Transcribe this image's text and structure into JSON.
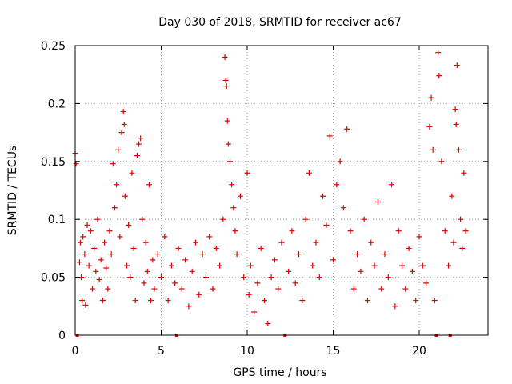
{
  "chart_data": {
    "type": "scatter",
    "title": "Day 030 of 2018, SRMTID for receiver ac67",
    "xlabel": "GPS time / hours",
    "ylabel": "SRMTID / TECUs",
    "xlim": [
      0,
      24
    ],
    "ylim": [
      0,
      0.25
    ],
    "grid": true,
    "marker": "+",
    "marker_color": "#dd0000",
    "x_ticks": [
      0,
      5,
      10,
      15,
      20
    ],
    "x_tick_labels": [
      "0",
      "5",
      "10",
      "15",
      "20"
    ],
    "y_ticks": [
      0,
      0.05,
      0.1,
      0.15,
      0.2,
      0.25
    ],
    "y_tick_labels": [
      "0",
      "0.05",
      "0.1",
      "0.15",
      "0.2",
      "0.25"
    ],
    "series": [
      {
        "name": "SRMTID",
        "points": [
          [
            0.0,
            0.157
          ],
          [
            0.05,
            0.148
          ],
          [
            0.12,
            0.0
          ],
          [
            0.25,
            0.063
          ],
          [
            0.3,
            0.08
          ],
          [
            0.35,
            0.05
          ],
          [
            0.4,
            0.03
          ],
          [
            0.45,
            0.085
          ],
          [
            0.55,
            0.07
          ],
          [
            0.6,
            0.026
          ],
          [
            0.7,
            0.095
          ],
          [
            0.8,
            0.06
          ],
          [
            0.9,
            0.09
          ],
          [
            1.0,
            0.04
          ],
          [
            1.1,
            0.075
          ],
          [
            1.2,
            0.055
          ],
          [
            1.3,
            0.1
          ],
          [
            1.4,
            0.048
          ],
          [
            1.5,
            0.065
          ],
          [
            1.6,
            0.03
          ],
          [
            1.7,
            0.08
          ],
          [
            1.8,
            0.058
          ],
          [
            1.9,
            0.04
          ],
          [
            2.0,
            0.09
          ],
          [
            2.1,
            0.07
          ],
          [
            2.2,
            0.148
          ],
          [
            2.3,
            0.11
          ],
          [
            2.4,
            0.13
          ],
          [
            2.5,
            0.16
          ],
          [
            2.6,
            0.085
          ],
          [
            2.7,
            0.175
          ],
          [
            2.8,
            0.193
          ],
          [
            2.85,
            0.182
          ],
          [
            2.9,
            0.12
          ],
          [
            3.0,
            0.06
          ],
          [
            3.1,
            0.095
          ],
          [
            3.2,
            0.05
          ],
          [
            3.3,
            0.14
          ],
          [
            3.4,
            0.075
          ],
          [
            3.5,
            0.03
          ],
          [
            3.6,
            0.155
          ],
          [
            3.7,
            0.165
          ],
          [
            3.8,
            0.17
          ],
          [
            3.9,
            0.1
          ],
          [
            4.0,
            0.045
          ],
          [
            4.1,
            0.08
          ],
          [
            4.2,
            0.055
          ],
          [
            4.3,
            0.13
          ],
          [
            4.4,
            0.03
          ],
          [
            4.5,
            0.065
          ],
          [
            4.6,
            0.04
          ],
          [
            4.8,
            0.07
          ],
          [
            5.0,
            0.05
          ],
          [
            5.2,
            0.085
          ],
          [
            5.4,
            0.03
          ],
          [
            5.6,
            0.06
          ],
          [
            5.8,
            0.045
          ],
          [
            5.9,
            0.0
          ],
          [
            6.0,
            0.075
          ],
          [
            6.2,
            0.04
          ],
          [
            6.4,
            0.065
          ],
          [
            6.6,
            0.025
          ],
          [
            6.8,
            0.055
          ],
          [
            7.0,
            0.08
          ],
          [
            7.2,
            0.035
          ],
          [
            7.4,
            0.07
          ],
          [
            7.6,
            0.05
          ],
          [
            7.8,
            0.085
          ],
          [
            8.0,
            0.04
          ],
          [
            8.2,
            0.075
          ],
          [
            8.4,
            0.06
          ],
          [
            8.6,
            0.1
          ],
          [
            8.7,
            0.24
          ],
          [
            8.75,
            0.22
          ],
          [
            8.8,
            0.215
          ],
          [
            8.85,
            0.185
          ],
          [
            8.9,
            0.165
          ],
          [
            9.0,
            0.15
          ],
          [
            9.1,
            0.13
          ],
          [
            9.2,
            0.11
          ],
          [
            9.3,
            0.09
          ],
          [
            9.4,
            0.07
          ],
          [
            9.6,
            0.12
          ],
          [
            9.8,
            0.05
          ],
          [
            10.0,
            0.14
          ],
          [
            10.1,
            0.035
          ],
          [
            10.2,
            0.06
          ],
          [
            10.4,
            0.02
          ],
          [
            10.6,
            0.045
          ],
          [
            10.8,
            0.075
          ],
          [
            11.0,
            0.03
          ],
          [
            11.2,
            0.01
          ],
          [
            11.4,
            0.05
          ],
          [
            11.6,
            0.065
          ],
          [
            11.8,
            0.04
          ],
          [
            12.0,
            0.08
          ],
          [
            12.2,
            0.0
          ],
          [
            12.4,
            0.055
          ],
          [
            12.6,
            0.09
          ],
          [
            12.8,
            0.045
          ],
          [
            13.0,
            0.07
          ],
          [
            13.2,
            0.03
          ],
          [
            13.4,
            0.1
          ],
          [
            13.6,
            0.14
          ],
          [
            13.8,
            0.06
          ],
          [
            14.0,
            0.08
          ],
          [
            14.2,
            0.05
          ],
          [
            14.4,
            0.12
          ],
          [
            14.6,
            0.095
          ],
          [
            14.8,
            0.172
          ],
          [
            15.0,
            0.065
          ],
          [
            15.2,
            0.13
          ],
          [
            15.4,
            0.15
          ],
          [
            15.6,
            0.11
          ],
          [
            15.8,
            0.178
          ],
          [
            16.0,
            0.09
          ],
          [
            16.2,
            0.04
          ],
          [
            16.4,
            0.07
          ],
          [
            16.6,
            0.055
          ],
          [
            16.8,
            0.1
          ],
          [
            17.0,
            0.03
          ],
          [
            17.2,
            0.08
          ],
          [
            17.4,
            0.06
          ],
          [
            17.6,
            0.115
          ],
          [
            17.8,
            0.04
          ],
          [
            18.0,
            0.07
          ],
          [
            18.2,
            0.05
          ],
          [
            18.4,
            0.13
          ],
          [
            18.6,
            0.025
          ],
          [
            18.8,
            0.09
          ],
          [
            19.0,
            0.06
          ],
          [
            19.2,
            0.04
          ],
          [
            19.4,
            0.075
          ],
          [
            19.6,
            0.055
          ],
          [
            19.8,
            0.03
          ],
          [
            20.0,
            0.085
          ],
          [
            20.2,
            0.06
          ],
          [
            20.4,
            0.045
          ],
          [
            20.6,
            0.18
          ],
          [
            20.7,
            0.205
          ],
          [
            20.8,
            0.16
          ],
          [
            20.9,
            0.03
          ],
          [
            21.0,
            0.0
          ],
          [
            21.1,
            0.244
          ],
          [
            21.15,
            0.224
          ],
          [
            21.3,
            0.15
          ],
          [
            21.5,
            0.09
          ],
          [
            21.7,
            0.06
          ],
          [
            21.8,
            0.0
          ],
          [
            21.9,
            0.12
          ],
          [
            22.0,
            0.08
          ],
          [
            22.1,
            0.195
          ],
          [
            22.15,
            0.182
          ],
          [
            22.2,
            0.233
          ],
          [
            22.3,
            0.16
          ],
          [
            22.4,
            0.1
          ],
          [
            22.5,
            0.075
          ],
          [
            22.6,
            0.14
          ],
          [
            22.7,
            0.09
          ]
        ]
      }
    ]
  }
}
